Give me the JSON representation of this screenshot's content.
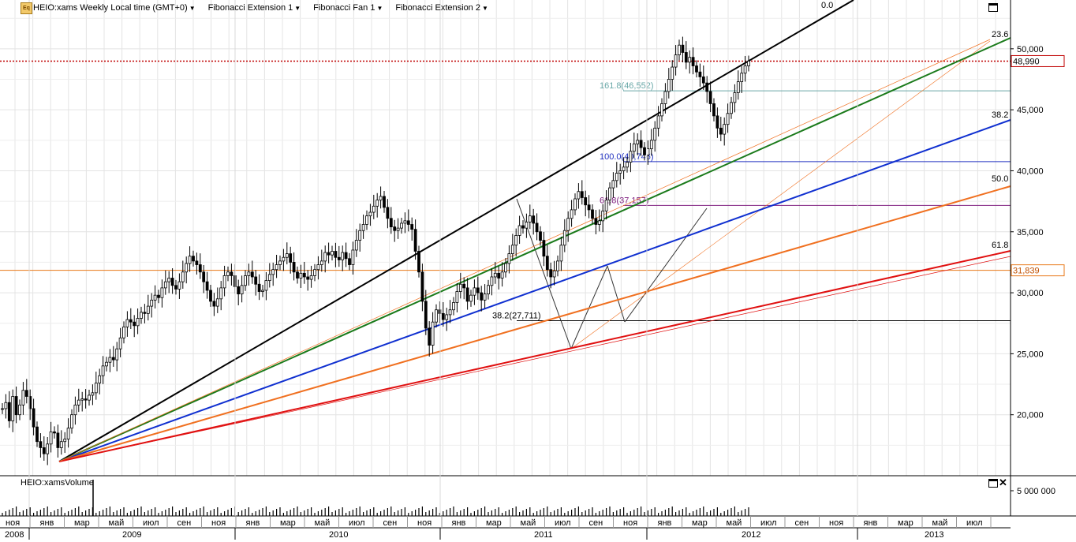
{
  "header": {
    "app_icon_label": "Eq",
    "symbol_title": "HEIO:xams Weekly Local time (GMT+0)",
    "studies": [
      "Fibonacci Extension 1",
      "Fibonacci Fan 1",
      "Fibonacci Extension 2"
    ]
  },
  "volume_panel": {
    "title": "HEIO:xamsVolume",
    "scale_label": "5 000 000"
  },
  "chart_data": {
    "type": "candlestick",
    "y_axis_ticks": [
      "20,000",
      "25,000",
      "30,000",
      "35,000",
      "40,000",
      "45,000",
      "50,000"
    ],
    "y_tick_values": [
      20000,
      25000,
      30000,
      35000,
      40000,
      45000,
      50000
    ],
    "ylim": [
      15000,
      54000
    ],
    "price_markers": [
      {
        "label": "48,990",
        "value": 48990,
        "color": "#c00000",
        "style": "dotted"
      },
      {
        "label": "31,839",
        "value": 31839,
        "color": "#e87818",
        "style": "solid"
      }
    ],
    "x_month_labels": [
      "ноя",
      "янв",
      "мар",
      "май",
      "июл",
      "сен",
      "ноя",
      "янв",
      "мар",
      "май",
      "июл",
      "сен",
      "ноя",
      "янв",
      "мар",
      "май",
      "июл",
      "сен",
      "ноя",
      "янв",
      "мар",
      "май",
      "июл",
      "сен",
      "ноя",
      "янв",
      "мар",
      "май",
      "июл"
    ],
    "x_year_labels": [
      "2008",
      "2009",
      "2010",
      "2011",
      "2012",
      "2013"
    ],
    "fib_fan_labels": [
      "0.0",
      "23.6",
      "38.2",
      "50.0",
      "61.8"
    ],
    "fib_fan_colors": [
      "#000000",
      "#1a7a1a",
      "#1030d0",
      "#f07020",
      "#e01010"
    ],
    "fib_extension_levels": [
      {
        "label": "161.8(46,552)",
        "value": 46552,
        "color": "#6aa8a8"
      },
      {
        "label": "100.0(40,746)",
        "value": 40746,
        "color": "#2030c0"
      },
      {
        "label": "61.8(37,157)",
        "value": 37157,
        "color": "#802080"
      },
      {
        "label": "38.2(27,711)",
        "value": 27711,
        "color": "#000000"
      }
    ],
    "close_series": [
      20500,
      21000,
      19500,
      21500,
      20000,
      20800,
      22000,
      21500,
      20500,
      19000,
      17800,
      17300,
      16800,
      17600,
      18600,
      18500,
      17300,
      17800,
      18000,
      18900,
      20000,
      20800,
      21200,
      21300,
      21200,
      21600,
      21800,
      22600,
      23200,
      24000,
      24300,
      24700,
      24500,
      25400,
      26300,
      27200,
      27800,
      27600,
      27300,
      27900,
      28400,
      28300,
      28900,
      29400,
      29800,
      29600,
      30400,
      30900,
      31200,
      30600,
      30300,
      30900,
      31700,
      32400,
      33000,
      32600,
      32300,
      31700,
      30900,
      30200,
      29300,
      28900,
      29500,
      30400,
      31400,
      31700,
      31400,
      30500,
      29900,
      30600,
      31400,
      31700,
      31300,
      30700,
      30100,
      30200,
      31000,
      31500,
      31900,
      32300,
      32600,
      32900,
      33200,
      32500,
      31700,
      31200,
      31600,
      31300,
      31100,
      31400,
      31900,
      32300,
      32600,
      33300,
      33100,
      33400,
      32900,
      32700,
      33300,
      32800,
      32300,
      33500,
      34300,
      35100,
      35600,
      36300,
      36600,
      37100,
      37600,
      37900,
      37000,
      36100,
      35400,
      35100,
      35300,
      35700,
      35900,
      35600,
      35200,
      33400,
      31700,
      29300,
      27100,
      25700,
      27600,
      28600,
      28300,
      27800,
      28200,
      28600,
      29200,
      30100,
      30700,
      30400,
      29300,
      29800,
      30400,
      30000,
      29400,
      29900,
      30600,
      31300,
      31600,
      31200,
      31700,
      32400,
      33200,
      33900,
      34700,
      35500,
      35300,
      35800,
      36300,
      35700,
      35000,
      34300,
      33000,
      31900,
      31300,
      31800,
      32600,
      33900,
      35100,
      36100,
      36800,
      37700,
      38300,
      37800,
      37200,
      36800,
      36100,
      35600,
      35900,
      36700,
      37600,
      38600,
      39200,
      39800,
      40000,
      40300,
      40700,
      41600,
      42200,
      42500,
      41900,
      41300,
      41800,
      42500,
      43500,
      44500,
      45500,
      46500,
      47500,
      48500,
      49500,
      50300,
      49700,
      48900,
      49300,
      48600,
      48100,
      47700,
      47200,
      46500,
      45500,
      44500,
      43500,
      43000,
      43800,
      44700,
      45600,
      46400,
      47300,
      48000,
      48600,
      48990
    ],
    "volume_note": "weekly volume histogram"
  }
}
